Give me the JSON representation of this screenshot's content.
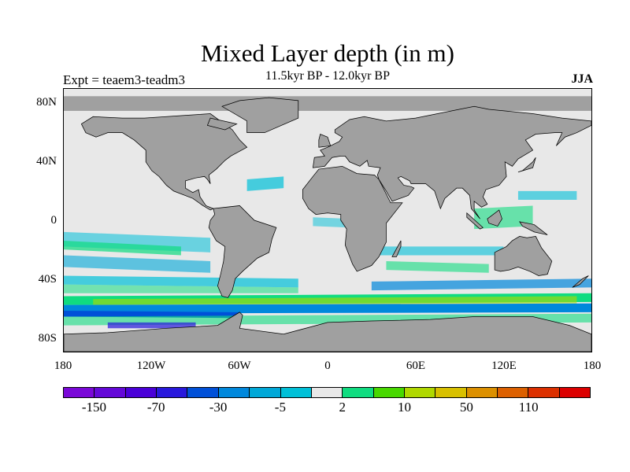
{
  "title": "Mixed Layer depth (in m)",
  "subtitle": "11.5kyr BP - 12.0kyr BP",
  "left_label": "Expt = teaem3-teadm3",
  "right_label": "JJA",
  "y_ticks": [
    "80N",
    "40N",
    "0",
    "40S",
    "80S"
  ],
  "y_tick_values": [
    80,
    40,
    0,
    -40,
    -80
  ],
  "x_ticks": [
    "180",
    "120W",
    "60W",
    "0",
    "60E",
    "120E",
    "180"
  ],
  "x_tick_values": [
    -180,
    -120,
    -60,
    0,
    60,
    120,
    180
  ],
  "colorbar": {
    "colors": [
      "#7a08d8",
      "#6408d8",
      "#4a00d8",
      "#2818dc",
      "#0050d8",
      "#0088dc",
      "#00a8d8",
      "#00c0d8",
      "#e8e8e8",
      "#10dc80",
      "#48d800",
      "#b0d800",
      "#d8c000",
      "#dc9000",
      "#dc6000",
      "#dc3000",
      "#dc0000"
    ],
    "labels": [
      "-150",
      "-70",
      "-30",
      "-5",
      "2",
      "10",
      "50",
      "110"
    ],
    "label_boundary_index": [
      1,
      3,
      5,
      7,
      9,
      11,
      13,
      15
    ]
  },
  "map_colors": {
    "ocean_default": "#e8e8e8",
    "land": "#a0a0a0",
    "missing": "#a0a0a0"
  }
}
